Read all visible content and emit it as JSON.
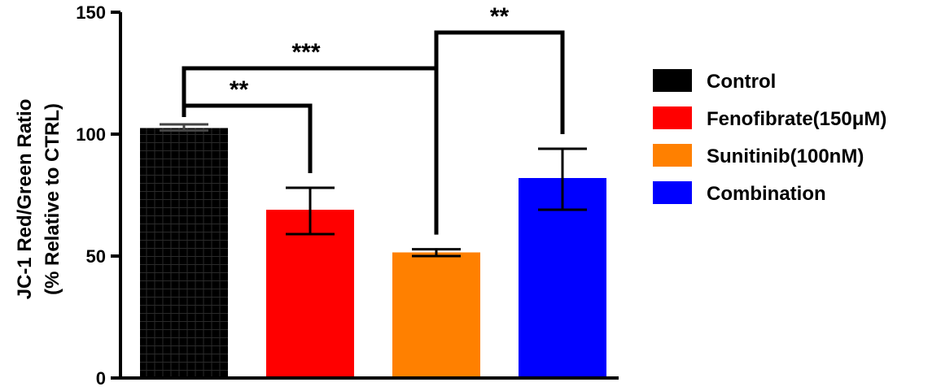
{
  "chart_data": {
    "type": "bar",
    "title": "",
    "xlabel": "",
    "ylabel": [
      "JC-1 Red/Green Ratio",
      "(% Relative to CTRL)"
    ],
    "ylim": [
      0,
      150
    ],
    "yticks": [
      0,
      50,
      100,
      150
    ],
    "categories": [
      "Control",
      "Fenofibrate(150μM)",
      "Sunitinib(100nM)",
      "Combination"
    ],
    "values": [
      102.5,
      69,
      51.5,
      82
    ],
    "error_upper": [
      104,
      78,
      52.8,
      94
    ],
    "error_lower": [
      101.5,
      59,
      50,
      69
    ],
    "colors": [
      "#000000",
      "#ff0000",
      "#ff8000",
      "#0000ff"
    ],
    "grid": false,
    "legend_placement": "right",
    "legend": [
      "Control",
      "Fenofibrate(150μM)",
      "Sunitinib(100nM)",
      "Combination"
    ],
    "significance": [
      {
        "from": 0,
        "to": 1,
        "label": "**"
      },
      {
        "from": 0,
        "to": 2,
        "label": "***"
      },
      {
        "from": 2,
        "to": 3,
        "label": "**"
      }
    ]
  }
}
